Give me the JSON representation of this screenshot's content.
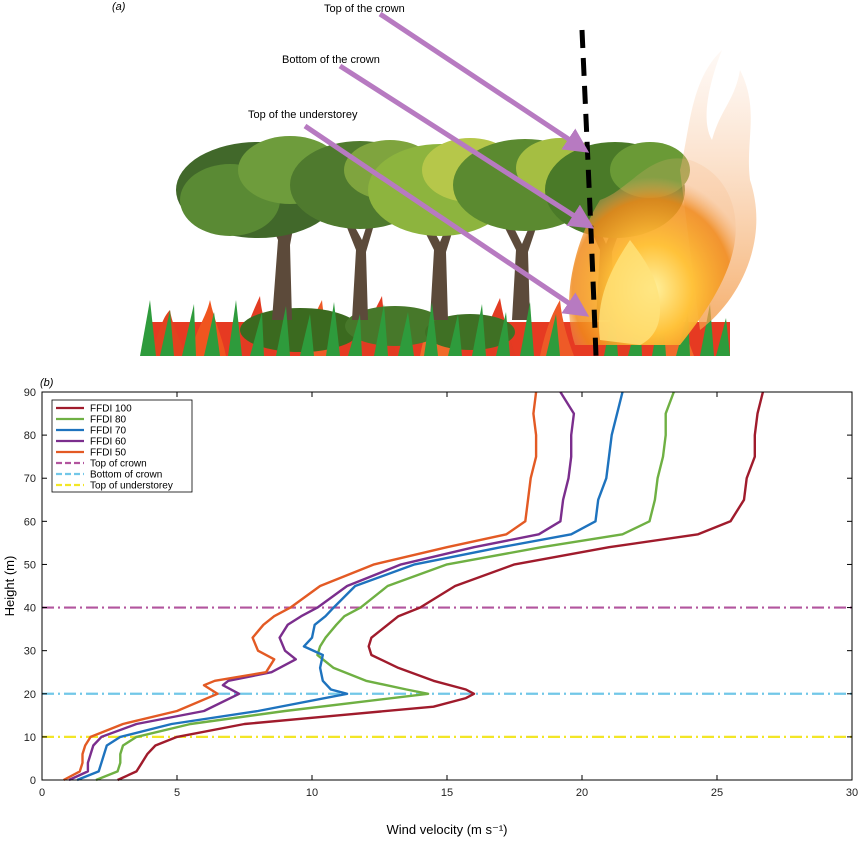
{
  "illustration": {
    "panel_label": "(a)",
    "annotations": [
      {
        "id": "top-crown",
        "label": "Top of the crown"
      },
      {
        "id": "bottom-crown",
        "label": "Bottom of the crown"
      },
      {
        "id": "top-understorey",
        "label": "Top of the understorey"
      }
    ],
    "arrow_color": "#b77ac1"
  },
  "chart_data": {
    "panel_label": "(b)",
    "type": "line",
    "title": "",
    "xlabel": "Wind velocity (m s⁻¹)",
    "ylabel": "Height (m)",
    "xlim": [
      0,
      30
    ],
    "ylim": [
      0,
      90
    ],
    "xticks": [
      0,
      5,
      10,
      15,
      20,
      25,
      30
    ],
    "yticks": [
      0,
      10,
      20,
      30,
      40,
      50,
      60,
      70,
      80,
      90
    ],
    "grid": false,
    "legend_position": "top-left",
    "series": [
      {
        "name": "FFDI 100",
        "color": "#a01b2c",
        "points": [
          [
            2.8,
            0
          ],
          [
            3.5,
            2
          ],
          [
            3.7,
            4
          ],
          [
            3.9,
            6
          ],
          [
            4.2,
            8
          ],
          [
            5.0,
            10
          ],
          [
            7.5,
            13
          ],
          [
            11.0,
            15
          ],
          [
            14.5,
            17
          ],
          [
            15.7,
            19
          ],
          [
            16.0,
            20
          ],
          [
            15.7,
            21
          ],
          [
            14.5,
            23
          ],
          [
            13.2,
            26
          ],
          [
            12.2,
            29
          ],
          [
            12.1,
            31
          ],
          [
            12.2,
            33
          ],
          [
            12.8,
            36
          ],
          [
            13.2,
            38
          ],
          [
            14.0,
            40
          ],
          [
            15.3,
            45
          ],
          [
            17.5,
            50
          ],
          [
            21.0,
            54
          ],
          [
            24.3,
            57
          ],
          [
            25.5,
            60
          ],
          [
            26.0,
            65
          ],
          [
            26.1,
            70
          ],
          [
            26.4,
            75
          ],
          [
            26.4,
            80
          ],
          [
            26.5,
            85
          ],
          [
            26.7,
            90
          ]
        ]
      },
      {
        "name": "FFDI 80",
        "color": "#6fb043",
        "points": [
          [
            2.0,
            0
          ],
          [
            2.8,
            2
          ],
          [
            2.9,
            4
          ],
          [
            2.9,
            6
          ],
          [
            3.0,
            8
          ],
          [
            3.5,
            10
          ],
          [
            5.5,
            13
          ],
          [
            9.0,
            16
          ],
          [
            14.3,
            20
          ],
          [
            13.5,
            21
          ],
          [
            12.0,
            23
          ],
          [
            10.8,
            26
          ],
          [
            10.2,
            29
          ],
          [
            10.3,
            31
          ],
          [
            10.5,
            33
          ],
          [
            10.9,
            36
          ],
          [
            11.2,
            38
          ],
          [
            11.8,
            40
          ],
          [
            12.8,
            45
          ],
          [
            15.0,
            50
          ],
          [
            18.5,
            54
          ],
          [
            21.5,
            57
          ],
          [
            22.5,
            60
          ],
          [
            22.7,
            65
          ],
          [
            22.8,
            70
          ],
          [
            23.0,
            75
          ],
          [
            23.1,
            80
          ],
          [
            23.1,
            85
          ],
          [
            23.4,
            90
          ]
        ]
      },
      {
        "name": "FFDI 70",
        "color": "#1e73be",
        "points": [
          [
            1.3,
            0
          ],
          [
            2.1,
            2
          ],
          [
            2.2,
            4
          ],
          [
            2.3,
            6
          ],
          [
            2.4,
            8
          ],
          [
            2.9,
            10
          ],
          [
            4.8,
            13
          ],
          [
            8.0,
            16
          ],
          [
            11.3,
            20
          ],
          [
            10.7,
            21
          ],
          [
            10.4,
            23
          ],
          [
            10.3,
            26
          ],
          [
            10.4,
            29
          ],
          [
            9.7,
            31
          ],
          [
            10.0,
            33
          ],
          [
            10.1,
            36
          ],
          [
            10.5,
            38
          ],
          [
            10.8,
            40
          ],
          [
            11.6,
            45
          ],
          [
            13.8,
            50
          ],
          [
            17.0,
            54
          ],
          [
            19.6,
            57
          ],
          [
            20.5,
            60
          ],
          [
            20.6,
            65
          ],
          [
            20.9,
            70
          ],
          [
            21.0,
            75
          ],
          [
            21.1,
            80
          ],
          [
            21.3,
            85
          ],
          [
            21.5,
            90
          ]
        ]
      },
      {
        "name": "FFDI 60",
        "color": "#7b2e8d",
        "points": [
          [
            1.0,
            0
          ],
          [
            1.7,
            2
          ],
          [
            1.7,
            4
          ],
          [
            1.8,
            6
          ],
          [
            1.9,
            8
          ],
          [
            2.2,
            10
          ],
          [
            3.5,
            13
          ],
          [
            6.0,
            16
          ],
          [
            7.3,
            20
          ],
          [
            6.7,
            22
          ],
          [
            6.9,
            23
          ],
          [
            8.5,
            25
          ],
          [
            9.4,
            28
          ],
          [
            9.0,
            30
          ],
          [
            8.8,
            33
          ],
          [
            9.1,
            36
          ],
          [
            9.6,
            38
          ],
          [
            10.2,
            40
          ],
          [
            11.3,
            45
          ],
          [
            13.3,
            50
          ],
          [
            16.0,
            54
          ],
          [
            18.4,
            57
          ],
          [
            19.2,
            60
          ],
          [
            19.3,
            65
          ],
          [
            19.5,
            70
          ],
          [
            19.6,
            75
          ],
          [
            19.6,
            80
          ],
          [
            19.7,
            85
          ],
          [
            19.2,
            90
          ]
        ]
      },
      {
        "name": "FFDI 50",
        "color": "#e35a24",
        "points": [
          [
            0.8,
            0
          ],
          [
            1.4,
            2
          ],
          [
            1.5,
            4
          ],
          [
            1.5,
            6
          ],
          [
            1.6,
            8
          ],
          [
            1.8,
            10
          ],
          [
            3.0,
            13
          ],
          [
            5.0,
            16
          ],
          [
            6.5,
            20
          ],
          [
            6.0,
            22
          ],
          [
            6.4,
            23
          ],
          [
            8.3,
            25
          ],
          [
            8.6,
            28
          ],
          [
            8.0,
            30
          ],
          [
            7.8,
            33
          ],
          [
            8.2,
            36
          ],
          [
            8.6,
            38
          ],
          [
            9.2,
            40
          ],
          [
            10.3,
            45
          ],
          [
            12.3,
            50
          ],
          [
            15.0,
            54
          ],
          [
            17.2,
            57
          ],
          [
            17.9,
            60
          ],
          [
            18.0,
            65
          ],
          [
            18.1,
            70
          ],
          [
            18.3,
            75
          ],
          [
            18.3,
            80
          ],
          [
            18.2,
            85
          ],
          [
            18.3,
            90
          ]
        ]
      }
    ],
    "reference_lines": [
      {
        "name": "Top of crown",
        "y": 40,
        "color": "#b2559e"
      },
      {
        "name": "Bottom of crown",
        "y": 20,
        "color": "#72c7e8"
      },
      {
        "name": "Top of understorey",
        "y": 10,
        "color": "#f2e627"
      }
    ]
  }
}
